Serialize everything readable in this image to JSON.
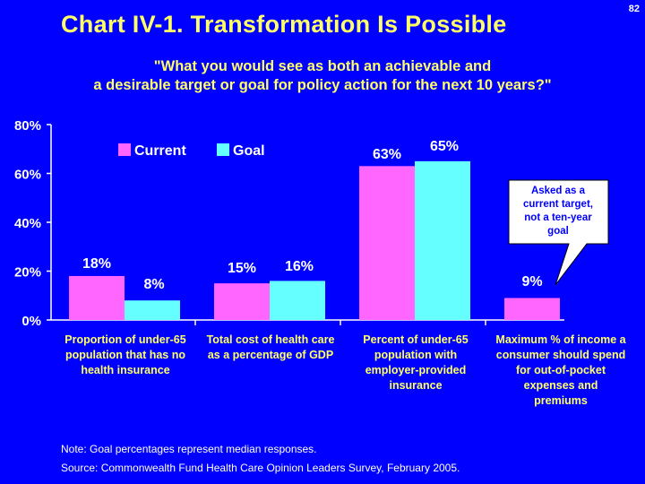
{
  "page_number": "82",
  "title": "Chart IV-1. Transformation Is Possible",
  "subtitle_lines": [
    "\"What you would see as both an achievable and",
    "a desirable target or goal for policy action for the next 10 years?\""
  ],
  "note": "Note: Goal percentages represent median responses.",
  "source": "Source: Commonwealth Fund Health Care Opinion Leaders Survey, February 2005.",
  "colors": {
    "background": "#0000ff",
    "current": "#ff66ff",
    "goal": "#66ffff",
    "title": "#ffff66",
    "text": "#ffffff"
  },
  "chart_data": {
    "type": "bar",
    "title": "",
    "xlabel": "",
    "ylabel": "",
    "ylim": [
      0,
      80
    ],
    "yticks": [
      0,
      20,
      40,
      60,
      80
    ],
    "ytick_labels": [
      "0%",
      "20%",
      "40%",
      "60%",
      "80%"
    ],
    "legend_position": "top-left",
    "categories": [
      [
        "Proportion of under-65",
        "population that has no",
        "health insurance"
      ],
      [
        "Total cost of health care",
        "as a percentage of GDP"
      ],
      [
        "Percent of under-65",
        "population with",
        "employer-provided",
        "insurance"
      ],
      [
        "Maximum % of income a",
        "consumer should spend",
        "for out-of-pocket",
        "expenses and",
        "premiums"
      ]
    ],
    "series": [
      {
        "name": "Current",
        "values": [
          18,
          15,
          63,
          9
        ],
        "labels": [
          "18%",
          "15%",
          "63%",
          "9%"
        ]
      },
      {
        "name": "Goal",
        "values": [
          8,
          16,
          65,
          null
        ],
        "labels": [
          "8%",
          "16%",
          "65%",
          ""
        ]
      }
    ],
    "annotation": [
      "Asked as a",
      "current target,",
      "not a ten-year",
      "goal"
    ]
  }
}
